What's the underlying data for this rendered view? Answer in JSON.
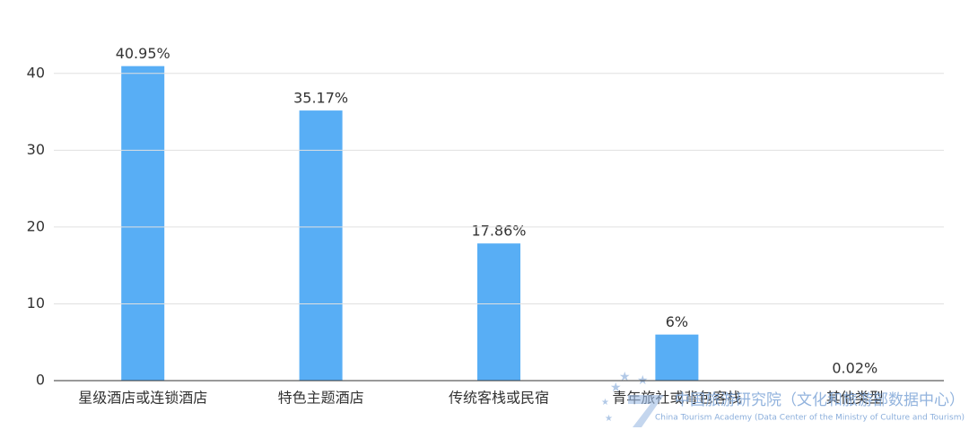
{
  "chart_data": {
    "type": "bar",
    "categories": [
      "星级酒店或连锁酒店",
      "特色主题酒店",
      "传统客栈或民宿",
      "青年旅社或背包客栈",
      "其他类型"
    ],
    "values": [
      40.95,
      35.17,
      17.86,
      6,
      0.02
    ],
    "value_labels": [
      "40.95%",
      "35.17%",
      "17.86%",
      "6%",
      "0.02%"
    ],
    "color": "#58aef5",
    "ylim": [
      0,
      45
    ],
    "yticks": [
      0,
      10,
      20,
      30,
      40
    ],
    "grid": true,
    "watermark": "中国旅游研究院（文化和旅游部数据中心）",
    "watermark_en": "China Tourism Academy (Data Center of the Ministry of Culture and Tourism)"
  }
}
